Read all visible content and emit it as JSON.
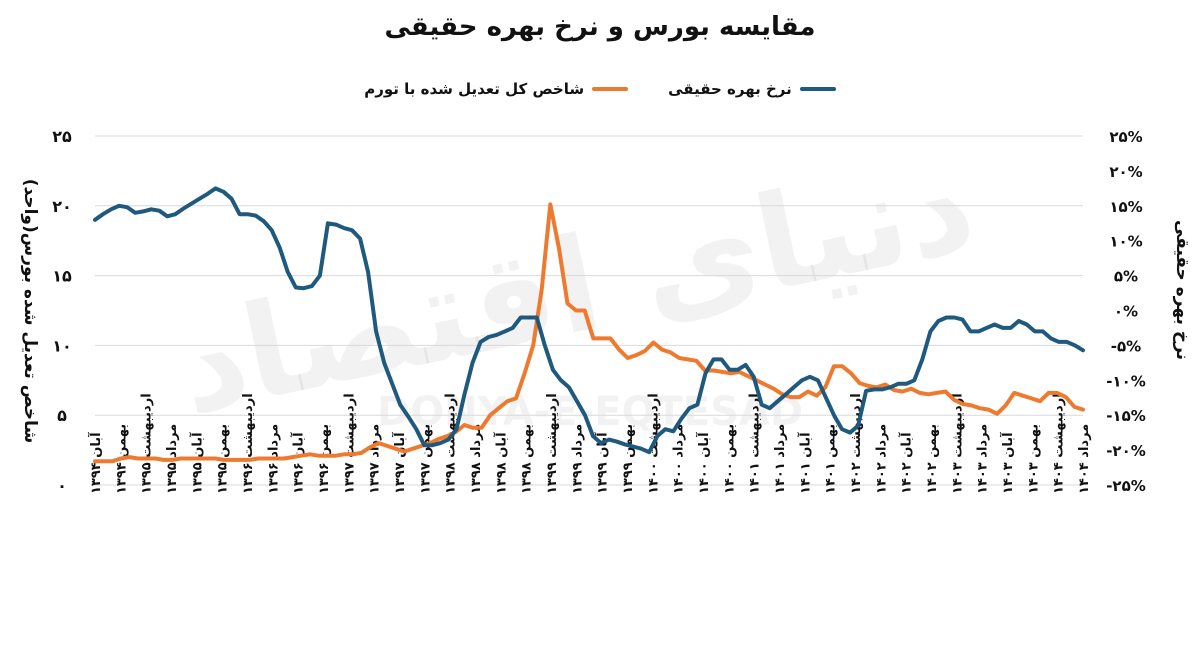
{
  "chart_data": {
    "type": "line",
    "title": "مقایسه بورس و نرخ بهره حقیقی",
    "y_left_label": "شاخص تعدیل شده بورس(واحد)",
    "y_right_label": "نرخ بهره حقیقی",
    "y_left_range": [
      0,
      25
    ],
    "y_right_range": [
      -25,
      25
    ],
    "y_left_ticks": [
      "25",
      "20",
      "15",
      "10",
      "5",
      "0"
    ],
    "y_right_ticks": [
      "25%",
      "20%",
      "15%",
      "10%",
      "5%",
      "0%",
      "-5%",
      "-10%",
      "-15%",
      "-20%",
      "-25%"
    ],
    "x_tick_labels": [
      "آبان ۱۳۹۴",
      "بهمن ۱۳۹۴",
      "اردیبهشت ۱۳۹۵",
      "مرداد ۱۳۹۵",
      "آبان ۱۳۹۵",
      "بهمن ۱۳۹۵",
      "اردیبهشت ۱۳۹۶",
      "مرداد ۱۳۹۶",
      "آبان ۱۳۹۶",
      "بهمن ۱۳۹۶",
      "اردیبهشت ۱۳۹۷",
      "مرداد ۱۳۹۷",
      "آبان ۱۳۹۷",
      "بهمن ۱۳۹۷",
      "اردیبهشت ۱۳۹۸",
      "مرداد ۱۳۹۸",
      "آبان ۱۳۹۸",
      "بهمن ۱۳۹۸",
      "اردیبهشت ۱۳۹۹",
      "مرداد ۱۳۹۹",
      "آبان ۱۳۹۹",
      "بهمن ۱۳۹۹",
      "اردیبهشت ۱۴۰۰",
      "مرداد ۱۴۰۰",
      "آبان ۱۴۰۰",
      "بهمن ۱۴۰۰",
      "اردیبهشت ۱۴۰۱",
      "مرداد ۱۴۰۱",
      "آبان ۱۴۰۱",
      "بهمن ۱۴۰۱",
      "اردیبهشت ۱۴۰۲",
      "مرداد ۱۴۰۲",
      "آبان ۱۴۰۲",
      "بهمن ۱۴۰۲",
      "اردیبهشت ۱۴۰۳",
      "مرداد ۱۴۰۳",
      "آبان ۱۴۰۳",
      "بهمن ۱۴۰۳",
      "اردیبهشت ۱۴۰۴",
      "مرداد ۱۴۰۴"
    ],
    "grid": true,
    "legend_position": "top-center",
    "series": [
      {
        "name": "شاخص کل تعدیل شده با تورم",
        "axis": "left",
        "color": "#EE7A2F",
        "values": [
          1.7,
          1.7,
          1.7,
          1.9,
          2.0,
          1.9,
          1.9,
          1.9,
          1.8,
          1.8,
          1.9,
          1.9,
          1.9,
          1.9,
          1.9,
          1.8,
          1.8,
          1.8,
          1.8,
          1.9,
          1.9,
          1.9,
          1.9,
          2.0,
          2.1,
          2.2,
          2.1,
          2.1,
          2.1,
          2.2,
          2.2,
          2.3,
          2.7,
          3.0,
          2.8,
          2.6,
          2.4,
          2.6,
          2.8,
          3.0,
          3.3,
          3.5,
          3.8,
          4.3,
          4.1,
          4.1,
          5.0,
          5.5,
          6.0,
          6.2,
          8.0,
          10.0,
          14.0,
          20.1,
          17.0,
          13.0,
          12.5,
          12.5,
          10.5,
          10.5,
          10.5,
          9.7,
          9.1,
          9.3,
          9.6,
          10.2,
          9.7,
          9.5,
          9.1,
          9.0,
          8.9,
          8.2,
          8.2,
          8.1,
          8.0,
          8.1,
          7.8,
          7.5,
          7.2,
          6.9,
          6.5,
          6.3,
          6.3,
          6.7,
          6.4,
          7.0,
          8.5,
          8.5,
          8.0,
          7.3,
          7.1,
          7.0,
          7.2,
          6.8,
          6.7,
          6.9,
          6.6,
          6.5,
          6.6,
          6.7,
          6.1,
          5.8,
          5.7,
          5.5,
          5.4,
          5.1,
          5.7,
          6.6,
          6.4,
          6.2,
          6.0,
          6.6,
          6.6,
          6.3,
          5.6,
          5.4
        ]
      },
      {
        "name": "نرخ بهره حقیقی",
        "axis": "right",
        "color": "#1F5A7E",
        "values": [
          13.0,
          13.8,
          14.5,
          15.0,
          14.8,
          14.0,
          14.2,
          14.5,
          14.3,
          13.5,
          13.8,
          14.6,
          15.3,
          16.0,
          16.7,
          17.5,
          17.0,
          16.0,
          13.8,
          13.8,
          13.6,
          12.8,
          11.5,
          9.0,
          5.5,
          3.3,
          3.2,
          3.5,
          5.0,
          12.5,
          12.3,
          11.8,
          11.5,
          10.3,
          5.5,
          -3.0,
          -7.5,
          -10.5,
          -13.5,
          -15.2,
          -17.0,
          -19.3,
          -19.3,
          -19.0,
          -18.5,
          -17.0,
          -12.0,
          -7.5,
          -4.5,
          -3.8,
          -3.5,
          -3.0,
          -2.5,
          -1.0,
          -1.0,
          -1.0,
          -5.0,
          -8.5,
          -10.0,
          -11.0,
          -13.0,
          -15.0,
          -18.0,
          -19.0,
          -18.5,
          -18.8,
          -19.2,
          -19.5,
          -19.8,
          -20.3,
          -18.0,
          -17.0,
          -17.3,
          -15.5,
          -14.0,
          -13.5,
          -9.0,
          -7.0,
          -7.0,
          -8.5,
          -8.5,
          -7.8,
          -9.5,
          -13.5,
          -14.0,
          -13.0,
          -12.0,
          -11.0,
          -10.0,
          -9.5,
          -10.0,
          -12.5,
          -15.0,
          -17.0,
          -17.5,
          -16.5,
          -11.5,
          -11.3,
          -11.3,
          -11.0,
          -10.5,
          -10.5,
          -10.0,
          -7.0,
          -3.0,
          -1.5,
          -1.0,
          -1.0,
          -1.3,
          -3.0,
          -3.0,
          -2.5,
          -2.0,
          -2.5,
          -2.5,
          -1.5,
          -2.0,
          -3.0,
          -3.0,
          -4.0,
          -4.5,
          -4.5,
          -5.0,
          -5.7
        ]
      }
    ]
  },
  "watermark": {
    "fa": "دنیای اقتصاد",
    "en": "DONYA-E-EQTESAD"
  }
}
